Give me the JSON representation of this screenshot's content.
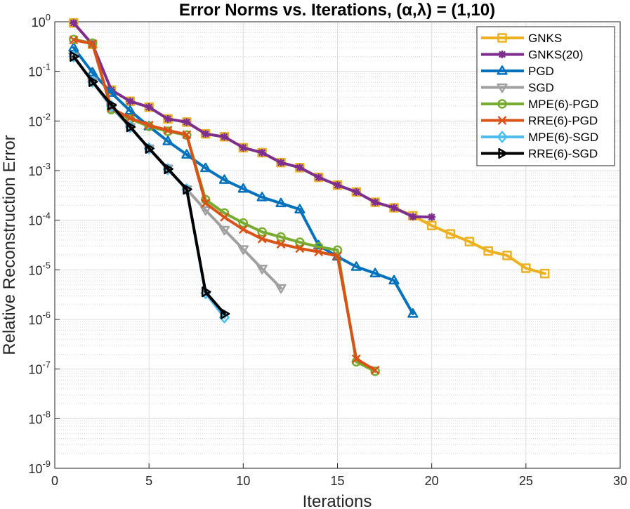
{
  "chart_data": {
    "type": "line",
    "title": "Error Norms vs. Iterations, (α,λ) = (1,10)",
    "xlabel": "Iterations",
    "ylabel": "Relative Reconstruction Error",
    "xlim": [
      0,
      30
    ],
    "ylim": [
      1e-09,
      1
    ],
    "yscale": "log",
    "xticks": [
      0,
      5,
      10,
      15,
      20,
      25,
      30
    ],
    "yticks": [
      {
        "value": 1e-09,
        "base": "10",
        "exp": "-9"
      },
      {
        "value": 1e-08,
        "base": "10",
        "exp": "-8"
      },
      {
        "value": 1e-07,
        "base": "10",
        "exp": "-7"
      },
      {
        "value": 1e-06,
        "base": "10",
        "exp": "-6"
      },
      {
        "value": 1e-05,
        "base": "10",
        "exp": "-5"
      },
      {
        "value": 0.0001,
        "base": "10",
        "exp": "-4"
      },
      {
        "value": 0.001,
        "base": "10",
        "exp": "-3"
      },
      {
        "value": 0.01,
        "base": "10",
        "exp": "-2"
      },
      {
        "value": 0.1,
        "base": "10",
        "exp": "-1"
      },
      {
        "value": 1,
        "base": "10",
        "exp": "0"
      }
    ],
    "grid": true,
    "legend_position": "top-right",
    "series": [
      {
        "name": "GNKS",
        "color": "#EDB120",
        "marker": "square",
        "x": [
          1,
          2,
          3,
          4,
          5,
          6,
          7,
          8,
          9,
          10,
          11,
          12,
          13,
          14,
          15,
          16,
          17,
          18,
          19,
          20,
          21,
          22,
          23,
          24,
          25,
          26
        ],
        "y": [
          0.95,
          0.35,
          0.042,
          0.025,
          0.019,
          0.011,
          0.0095,
          0.0055,
          0.0048,
          0.0029,
          0.0023,
          0.00145,
          0.00115,
          0.00073,
          0.00051,
          0.00037,
          0.00023,
          0.000178,
          0.000123,
          7.8e-05,
          5.3e-05,
          3.7e-05,
          2.4e-05,
          1.95e-05,
          1.08e-05,
          8.4e-06
        ]
      },
      {
        "name": "GNKS(20)",
        "color": "#7E2F8E",
        "marker": "star",
        "x": [
          1,
          2,
          3,
          4,
          5,
          6,
          7,
          8,
          9,
          10,
          11,
          12,
          13,
          14,
          15,
          16,
          17,
          18,
          19,
          20
        ],
        "y": [
          0.95,
          0.35,
          0.042,
          0.025,
          0.019,
          0.011,
          0.0095,
          0.0055,
          0.0048,
          0.0029,
          0.0023,
          0.00145,
          0.00115,
          0.00073,
          0.00051,
          0.00037,
          0.00023,
          0.000178,
          0.000118,
          0.000116
        ]
      },
      {
        "name": "PGD",
        "color": "#0072BD",
        "marker": "triangle-up",
        "x": [
          1,
          2,
          3,
          4,
          5,
          6,
          7,
          8,
          9,
          10,
          11,
          12,
          13,
          14,
          15,
          16,
          17,
          18,
          19
        ],
        "y": [
          0.3,
          0.095,
          0.037,
          0.016,
          0.0078,
          0.0039,
          0.0021,
          0.00112,
          0.00065,
          0.00043,
          0.00029,
          0.00022,
          0.000165,
          3.1e-05,
          1.85e-05,
          1.15e-05,
          8.5e-06,
          6.1e-06,
          1.3e-06
        ]
      },
      {
        "name": "SGD",
        "color": "#A0A0A0",
        "marker": "triangle-down",
        "x": [
          1,
          2,
          3,
          4,
          5,
          6,
          7,
          8,
          9,
          10,
          11,
          12
        ],
        "y": [
          0.2,
          0.062,
          0.019,
          0.0075,
          0.0028,
          0.0011,
          0.00042,
          0.00016,
          6.4e-05,
          2.6e-05,
          1.05e-05,
          4.3e-06
        ]
      },
      {
        "name": "MPE(6)-PGD",
        "color": "#77AC30",
        "marker": "circle",
        "x": [
          1,
          2,
          3,
          4,
          5,
          6,
          7,
          8,
          9,
          10,
          11,
          12,
          13,
          14,
          15,
          16,
          17
        ],
        "y": [
          0.44,
          0.37,
          0.017,
          0.011,
          0.0078,
          0.0062,
          0.0052,
          0.00026,
          0.00014,
          8.8e-05,
          5.8e-05,
          4.6e-05,
          3.6e-05,
          2.9e-05,
          2.5e-05,
          1.4e-07,
          9e-08
        ]
      },
      {
        "name": "RRE(6)-PGD",
        "color": "#D95319",
        "marker": "x",
        "x": [
          1,
          2,
          3,
          4,
          5,
          6,
          7,
          8,
          9,
          10,
          11,
          12,
          13,
          14,
          15,
          16,
          17
        ],
        "y": [
          0.43,
          0.36,
          0.018,
          0.0115,
          0.0082,
          0.0065,
          0.0053,
          0.00022,
          0.000115,
          6.5e-05,
          4.2e-05,
          3.3e-05,
          2.7e-05,
          2.3e-05,
          1.9e-05,
          1.6e-07,
          9.5e-08
        ]
      },
      {
        "name": "MPE(6)-SGD",
        "color": "#4DBEEE",
        "marker": "diamond",
        "x": [
          1,
          2,
          3,
          4,
          5,
          6,
          7,
          8,
          9
        ],
        "y": [
          0.2,
          0.062,
          0.02,
          0.0076,
          0.0028,
          0.00107,
          0.00042,
          3.4e-06,
          1.1e-06
        ]
      },
      {
        "name": "RRE(6)-SGD",
        "color": "#000000",
        "marker": "triangle-right",
        "x": [
          1,
          2,
          3,
          4,
          5,
          6,
          7,
          8,
          9
        ],
        "y": [
          0.2,
          0.062,
          0.021,
          0.0076,
          0.0028,
          0.00108,
          0.00042,
          3.6e-06,
          1.3e-06
        ]
      }
    ]
  }
}
